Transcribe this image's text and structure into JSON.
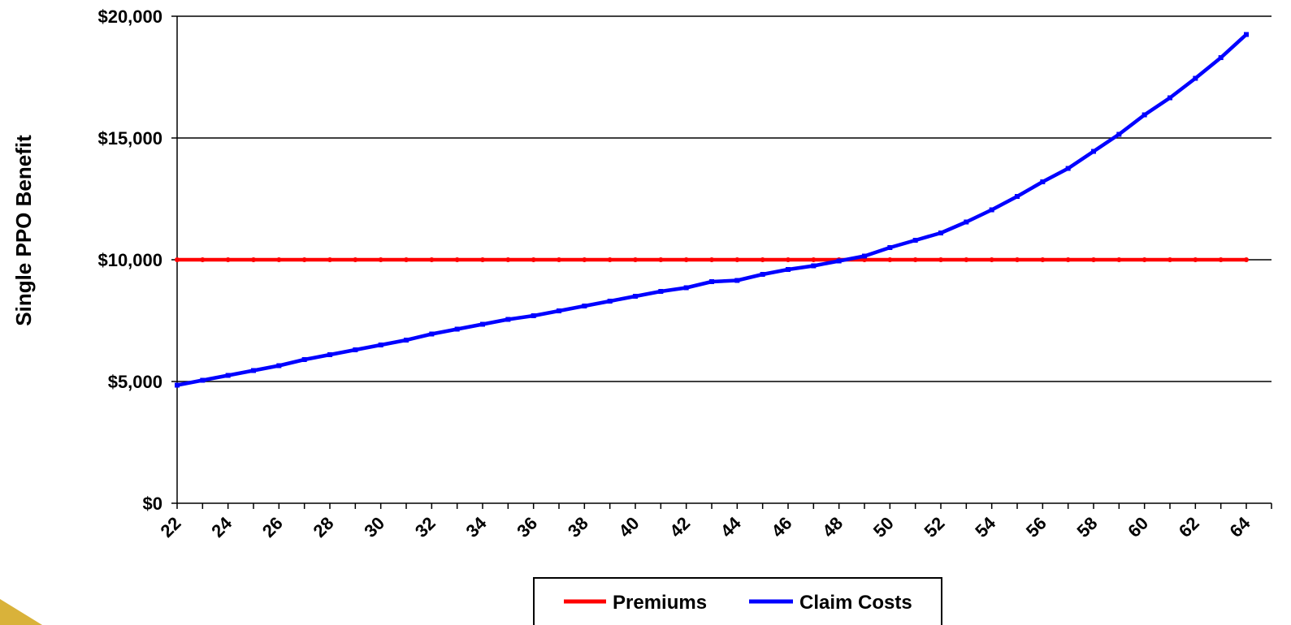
{
  "chart_data": {
    "type": "line",
    "title": "",
    "xlabel": "",
    "ylabel": "Single PPO Benefit",
    "ylim": [
      0,
      20000
    ],
    "y_ticks": [
      "$0",
      "$5,000",
      "$10,000",
      "$15,000",
      "$20,000"
    ],
    "y_tick_values": [
      0,
      5000,
      10000,
      15000,
      20000
    ],
    "x": [
      22,
      23,
      24,
      25,
      26,
      27,
      28,
      29,
      30,
      31,
      32,
      33,
      34,
      35,
      36,
      37,
      38,
      39,
      40,
      41,
      42,
      43,
      44,
      45,
      46,
      47,
      48,
      49,
      50,
      51,
      52,
      53,
      54,
      55,
      56,
      57,
      58,
      59,
      60,
      61,
      62,
      63,
      64
    ],
    "x_tick_labels": [
      "22",
      "24",
      "26",
      "28",
      "30",
      "32",
      "34",
      "36",
      "38",
      "40",
      "42",
      "44",
      "46",
      "48",
      "50",
      "52",
      "54",
      "56",
      "58",
      "60",
      "62",
      "64"
    ],
    "grid": "horizontal",
    "legend_position": "bottom",
    "series": [
      {
        "name": "Premiums",
        "color": "#ff0000",
        "values": [
          10000,
          10000,
          10000,
          10000,
          10000,
          10000,
          10000,
          10000,
          10000,
          10000,
          10000,
          10000,
          10000,
          10000,
          10000,
          10000,
          10000,
          10000,
          10000,
          10000,
          10000,
          10000,
          10000,
          10000,
          10000,
          10000,
          10000,
          10000,
          10000,
          10000,
          10000,
          10000,
          10000,
          10000,
          10000,
          10000,
          10000,
          10000,
          10000,
          10000,
          10000,
          10000,
          10000
        ]
      },
      {
        "name": "Claim Costs",
        "color": "#0000ff",
        "values": [
          4850,
          5050,
          5250,
          5450,
          5650,
          5900,
          6100,
          6300,
          6500,
          6700,
          6950,
          7150,
          7350,
          7550,
          7700,
          7900,
          8100,
          8300,
          8500,
          8700,
          8850,
          9100,
          9150,
          9400,
          9600,
          9750,
          9950,
          10150,
          10500,
          10800,
          11100,
          11550,
          12050,
          12600,
          13200,
          13750,
          14450,
          15150,
          15950,
          16650,
          17450,
          18300,
          19250
        ]
      }
    ]
  }
}
